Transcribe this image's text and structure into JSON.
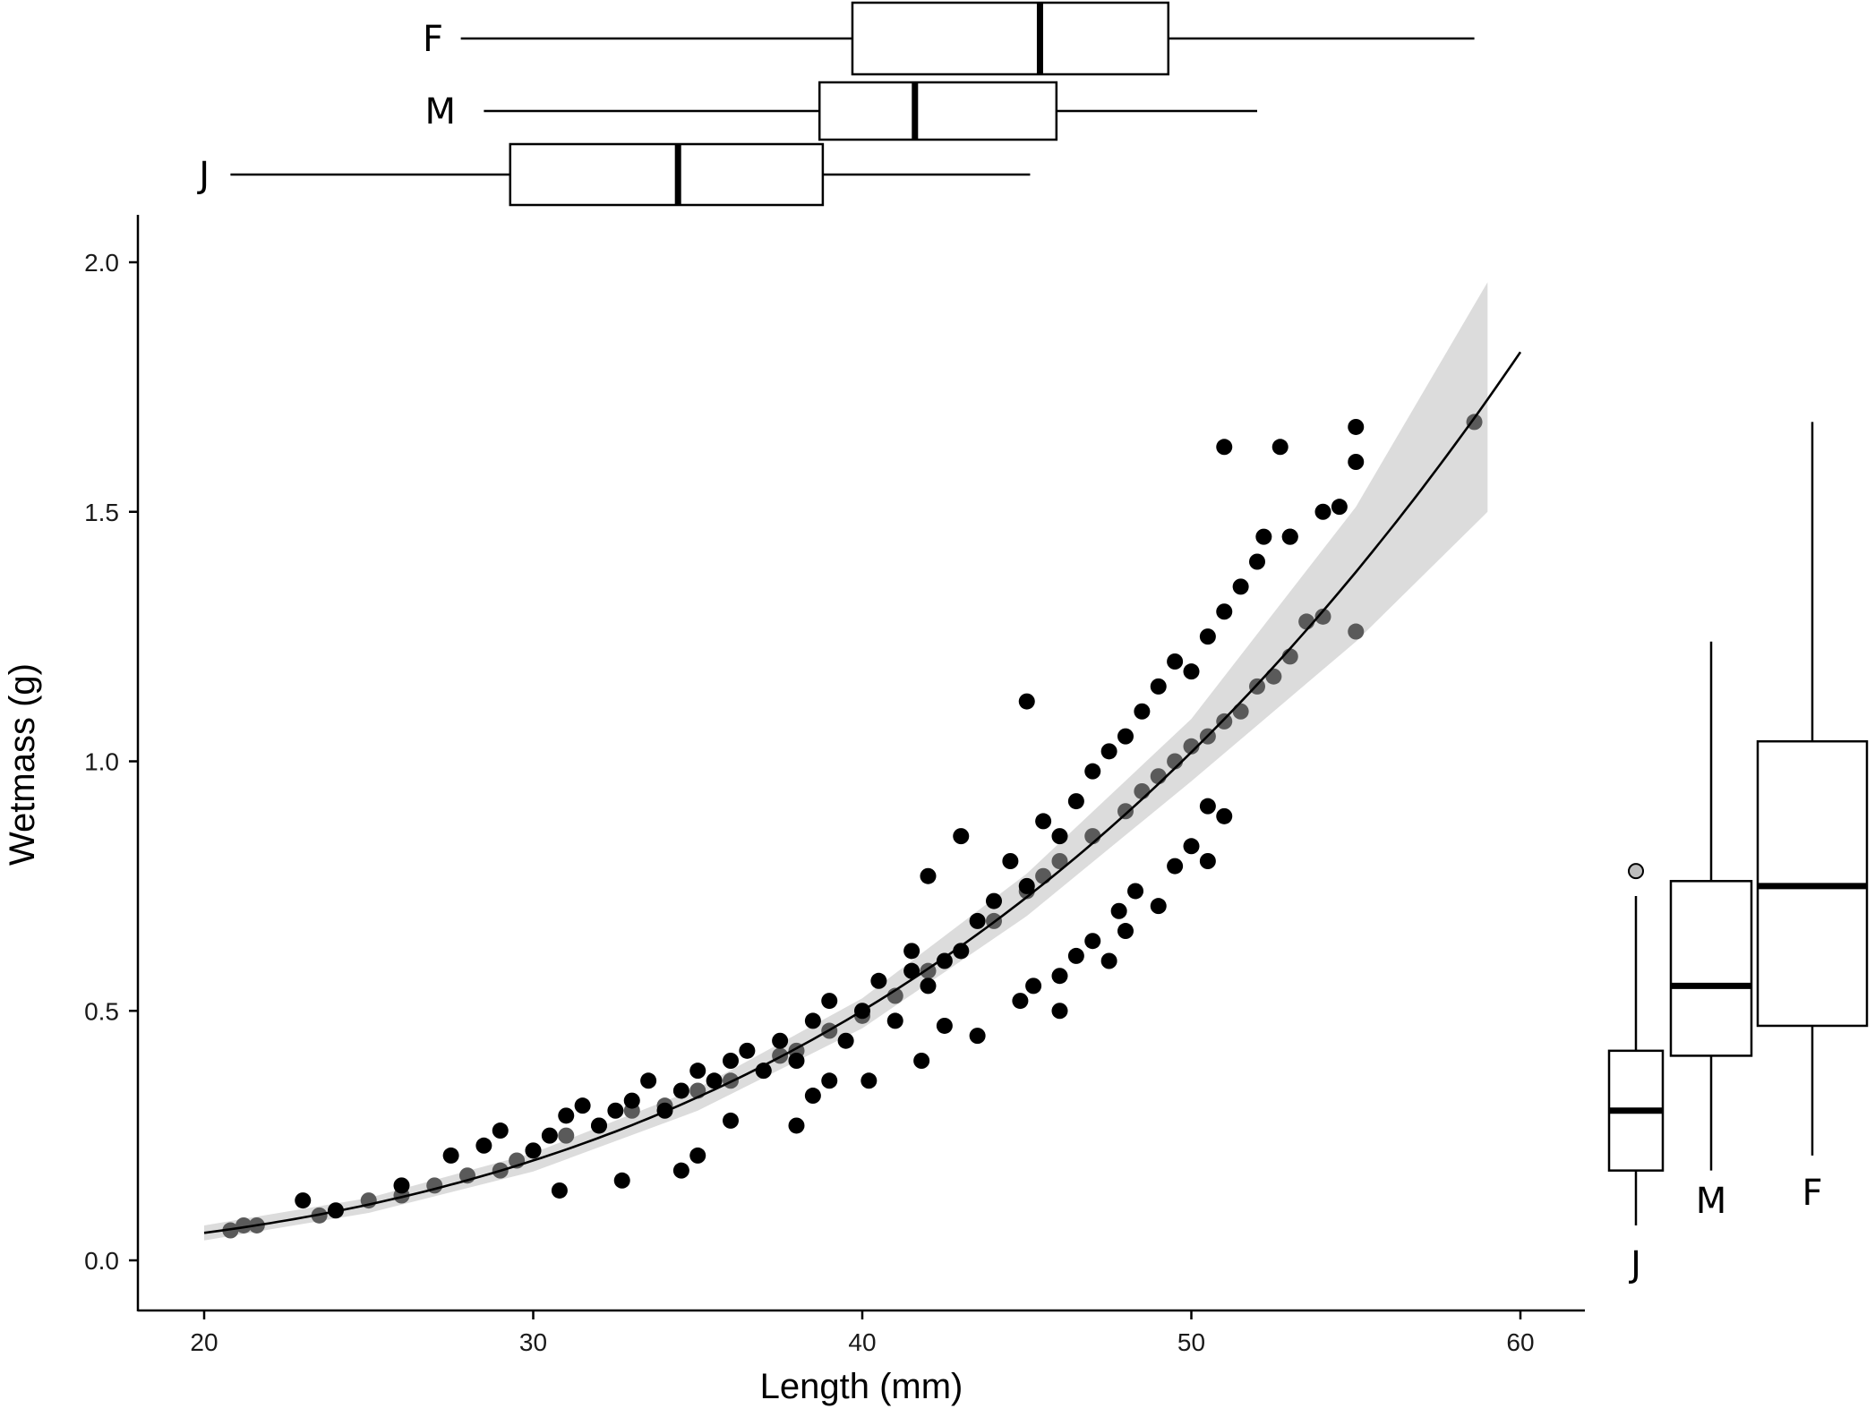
{
  "chart_data": [
    {
      "type": "scatter",
      "xlabel": "Length (mm)",
      "ylabel": "Wetmass (g)",
      "xlim": [
        18,
        62
      ],
      "ylim": [
        -0.1,
        2.1
      ],
      "x_ticks": [
        "20",
        "30",
        "40",
        "50",
        "60"
      ],
      "y_ticks": [
        "0.0",
        "0.5",
        "1.0",
        "1.5",
        "2.0"
      ],
      "grid": false,
      "legend": "none",
      "colors": {
        "dark_points": "#000000",
        "grey_points": "#5a5a5a",
        "fit_line": "#000000",
        "confidence_band": "#d9d9d9"
      },
      "fit": {
        "model": "power",
        "x": [
          20,
          60
        ],
        "y": [
          0.055,
          1.82
        ]
      },
      "confidence_band": {
        "x": [
          20,
          25,
          30,
          35,
          40,
          45,
          50,
          55,
          59
        ],
        "lower": [
          0.04,
          0.095,
          0.178,
          0.3,
          0.465,
          0.69,
          0.96,
          1.24,
          1.5
        ],
        "upper": [
          0.07,
          0.125,
          0.215,
          0.345,
          0.525,
          0.775,
          1.085,
          1.51,
          1.96
        ]
      },
      "series_dark": {
        "x": [
          23,
          24,
          26,
          27.5,
          28.5,
          29,
          30,
          30.5,
          31,
          31.5,
          32,
          32.5,
          33,
          33.5,
          34,
          34.5,
          35,
          35.5,
          36,
          36.5,
          37,
          37.5,
          38,
          38.5,
          39,
          39.5,
          40,
          40.5,
          41,
          41.5,
          42,
          42.5,
          43,
          43.5,
          44,
          44.5,
          45,
          45.5,
          46,
          46.5,
          47,
          47.5,
          48,
          48.5,
          49,
          49.5,
          50,
          50.5,
          51,
          51.5,
          52,
          53,
          54,
          55,
          45,
          46,
          47.5,
          48,
          49,
          50.5,
          51,
          52.7,
          53,
          54.5,
          55,
          30.8,
          32.7,
          34.5,
          35,
          36,
          38,
          38.5,
          39,
          40.2,
          41.8,
          42.5,
          43.5,
          44.8,
          45.2,
          46,
          46.5,
          47,
          47.8,
          48.3,
          49.5,
          50,
          50.5,
          51,
          52.2,
          42,
          41.5,
          43
        ],
        "y": [
          0.12,
          0.1,
          0.15,
          0.21,
          0.23,
          0.26,
          0.22,
          0.25,
          0.29,
          0.31,
          0.27,
          0.3,
          0.32,
          0.36,
          0.3,
          0.34,
          0.38,
          0.36,
          0.4,
          0.42,
          0.38,
          0.44,
          0.4,
          0.48,
          0.52,
          0.44,
          0.5,
          0.56,
          0.48,
          0.58,
          0.55,
          0.6,
          0.62,
          0.68,
          0.72,
          0.8,
          0.75,
          0.88,
          0.85,
          0.92,
          0.98,
          1.02,
          1.05,
          1.1,
          1.15,
          1.2,
          1.18,
          1.25,
          1.3,
          1.35,
          1.4,
          1.45,
          1.5,
          1.6,
          1.12,
          0.5,
          0.6,
          0.66,
          0.71,
          0.8,
          0.89,
          1.63,
          1.45,
          1.51,
          1.67,
          0.14,
          0.16,
          0.18,
          0.21,
          0.28,
          0.27,
          0.33,
          0.36,
          0.36,
          0.4,
          0.47,
          0.45,
          0.52,
          0.55,
          0.57,
          0.61,
          0.64,
          0.7,
          0.74,
          0.79,
          0.83,
          0.91,
          1.63,
          1.45,
          0.77,
          0.62,
          0.85
        ]
      },
      "series_grey": {
        "x": [
          20.8,
          21.2,
          21.6,
          23.5,
          25,
          26,
          27,
          28,
          29,
          29.5,
          30,
          31,
          32,
          33,
          34,
          35,
          36,
          37,
          37.5,
          38,
          39,
          40,
          41,
          42,
          43,
          44,
          45,
          45.5,
          46,
          47,
          48,
          48.5,
          49,
          49.5,
          50,
          50.5,
          51,
          51.5,
          52,
          52.5,
          53,
          53.5,
          54,
          55,
          58.6
        ],
        "y": [
          0.06,
          0.07,
          0.07,
          0.09,
          0.12,
          0.13,
          0.15,
          0.17,
          0.18,
          0.2,
          0.22,
          0.25,
          0.27,
          0.3,
          0.31,
          0.34,
          0.36,
          0.38,
          0.41,
          0.42,
          0.46,
          0.49,
          0.53,
          0.58,
          0.62,
          0.68,
          0.74,
          0.77,
          0.8,
          0.85,
          0.9,
          0.94,
          0.97,
          1.0,
          1.03,
          1.05,
          1.08,
          1.1,
          1.15,
          1.17,
          1.21,
          1.28,
          1.29,
          1.26,
          1.68
        ]
      }
    },
    {
      "type": "box",
      "orientation": "horizontal",
      "axis": "Length (mm)",
      "categories": [
        "F",
        "M",
        "J"
      ],
      "boxes": [
        {
          "label": "F",
          "whisker_low": 27.8,
          "q1": 39.7,
          "median": 45.4,
          "q3": 49.3,
          "whisker_high": 58.6
        },
        {
          "label": "M",
          "whisker_low": 28.5,
          "q1": 38.7,
          "median": 41.6,
          "q3": 45.9,
          "whisker_high": 52.0
        },
        {
          "label": "J",
          "whisker_low": 20.8,
          "q1": 29.3,
          "median": 34.4,
          "q3": 38.8,
          "whisker_high": 45.1
        }
      ]
    },
    {
      "type": "box",
      "orientation": "vertical",
      "axis": "Wetmass (g)",
      "categories": [
        "J",
        "M",
        "F"
      ],
      "boxes": [
        {
          "label": "J",
          "whisker_low": 0.07,
          "q1": 0.18,
          "median": 0.3,
          "q3": 0.42,
          "whisker_high": 0.73,
          "outliers": [
            0.78
          ]
        },
        {
          "label": "M",
          "whisker_low": 0.18,
          "q1": 0.41,
          "median": 0.55,
          "q3": 0.76,
          "whisker_high": 1.24
        },
        {
          "label": "F",
          "whisker_low": 0.21,
          "q1": 0.47,
          "median": 0.75,
          "q3": 1.04,
          "whisker_high": 1.68
        }
      ]
    }
  ]
}
